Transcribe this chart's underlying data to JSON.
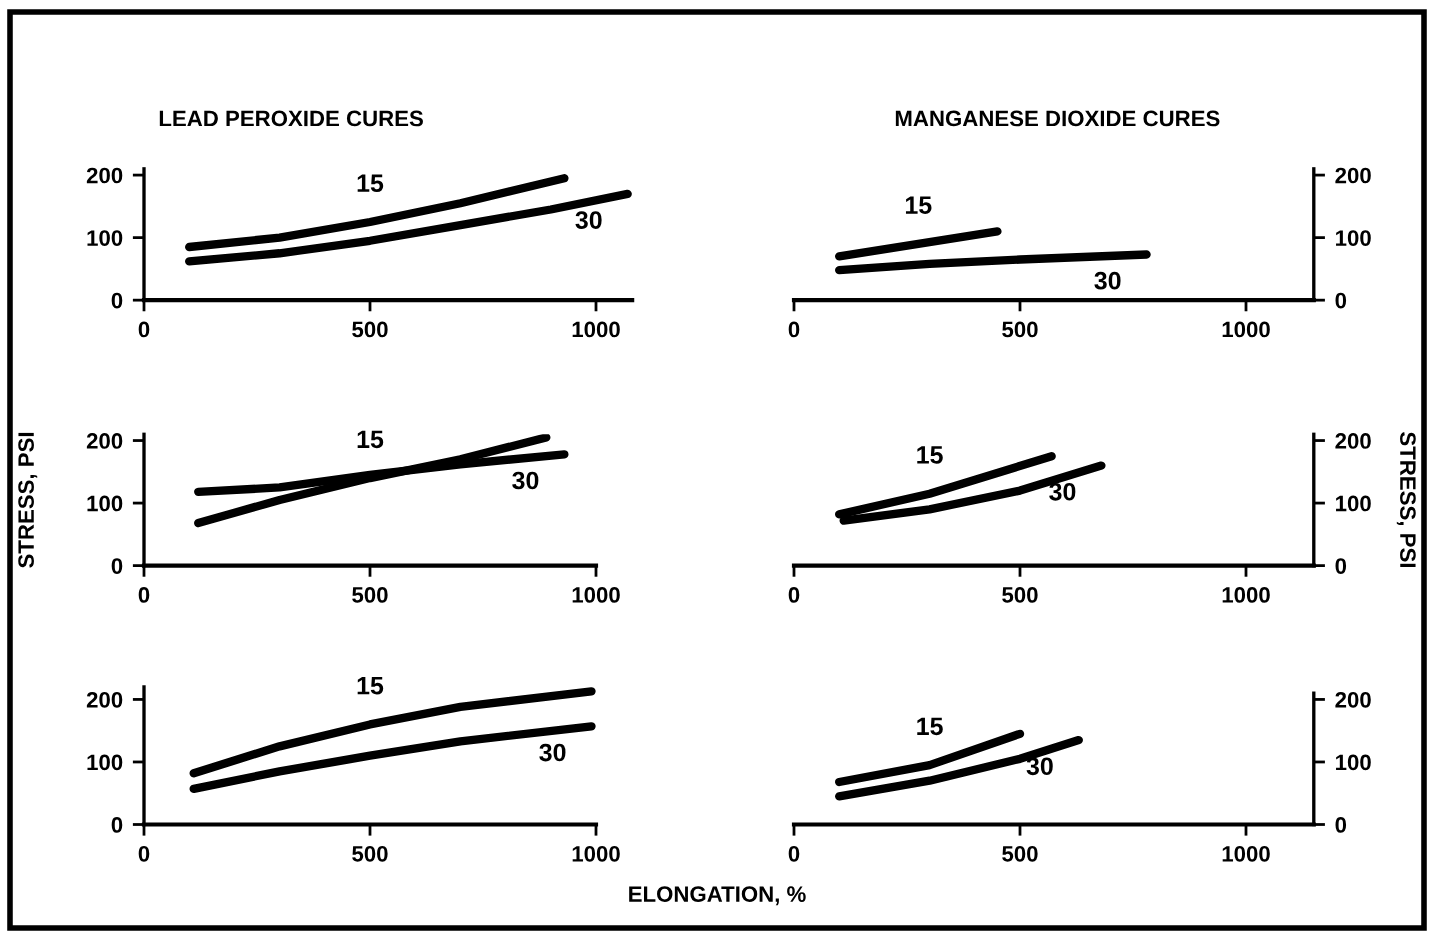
{
  "chart_data": [
    {
      "type": "line",
      "title": "LEAD PEROXIDE CURES",
      "xlim": [
        0,
        1080
      ],
      "xticks": [
        0,
        500,
        1000
      ],
      "ylim": [
        0,
        210
      ],
      "yticks": [
        0,
        100,
        200
      ],
      "legend": false,
      "grid": false,
      "series": [
        {
          "name": "15",
          "color": "#000000",
          "x": [
            100,
            300,
            500,
            700,
            930
          ],
          "values": [
            85,
            100,
            125,
            155,
            195
          ]
        },
        {
          "name": "30",
          "color": "#000000",
          "x": [
            100,
            300,
            500,
            700,
            900,
            1070
          ],
          "values": [
            62,
            75,
            95,
            120,
            145,
            170
          ]
        }
      ]
    },
    {
      "type": "line",
      "title": "MANGANESE DIOXIDE CURES",
      "xlim": [
        0,
        1150
      ],
      "xticks": [
        0,
        500,
        1000
      ],
      "ylim": [
        0,
        210
      ],
      "yticks": [
        0,
        100,
        200
      ],
      "legend": false,
      "grid": false,
      "series": [
        {
          "name": "15",
          "color": "#000000",
          "x": [
            100,
            450
          ],
          "values": [
            70,
            110
          ]
        },
        {
          "name": "30",
          "color": "#000000",
          "x": [
            100,
            300,
            500,
            780
          ],
          "values": [
            48,
            58,
            65,
            73
          ]
        }
      ]
    },
    {
      "type": "line",
      "ylabel": "STRESS, PSI",
      "xlim": [
        0,
        1000
      ],
      "xticks": [
        0,
        500,
        1000
      ],
      "ylim": [
        0,
        210
      ],
      "yticks": [
        0,
        100,
        200
      ],
      "legend": false,
      "grid": false,
      "series": [
        {
          "name": "15",
          "color": "#000000",
          "x": [
            120,
            300,
            500,
            700,
            890
          ],
          "values": [
            68,
            105,
            140,
            170,
            205
          ]
        },
        {
          "name": "30",
          "color": "#000000",
          "x": [
            120,
            300,
            500,
            700,
            930
          ],
          "values": [
            118,
            125,
            145,
            162,
            178
          ]
        }
      ]
    },
    {
      "type": "line",
      "ylabel": "STRESS, PSI",
      "xlim": [
        0,
        1150
      ],
      "xticks": [
        0,
        500,
        1000
      ],
      "ylim": [
        0,
        210
      ],
      "yticks": [
        0,
        100,
        200
      ],
      "legend": false,
      "grid": false,
      "series": [
        {
          "name": "15",
          "color": "#000000",
          "x": [
            100,
            300,
            570
          ],
          "values": [
            82,
            115,
            175
          ]
        },
        {
          "name": "30",
          "color": "#000000",
          "x": [
            110,
            300,
            500,
            680
          ],
          "values": [
            72,
            90,
            120,
            160
          ]
        }
      ]
    },
    {
      "type": "line",
      "xlabel": "ELONGATION, %",
      "xlim": [
        0,
        1000
      ],
      "xticks": [
        0,
        500,
        1000
      ],
      "ylim": [
        0,
        220
      ],
      "yticks": [
        0,
        100,
        200
      ],
      "legend": false,
      "grid": false,
      "series": [
        {
          "name": "15",
          "color": "#000000",
          "x": [
            110,
            300,
            500,
            700,
            990
          ],
          "values": [
            82,
            125,
            160,
            188,
            213
          ]
        },
        {
          "name": "30",
          "color": "#000000",
          "x": [
            110,
            300,
            500,
            700,
            990
          ],
          "values": [
            57,
            85,
            110,
            133,
            157
          ]
        }
      ]
    },
    {
      "type": "line",
      "xlim": [
        0,
        1150
      ],
      "xticks": [
        0,
        500,
        1000
      ],
      "ylim": [
        0,
        210
      ],
      "yticks": [
        0,
        100,
        200
      ],
      "legend": false,
      "grid": false,
      "series": [
        {
          "name": "15",
          "color": "#000000",
          "x": [
            100,
            300,
            500
          ],
          "values": [
            68,
            95,
            145
          ]
        },
        {
          "name": "30",
          "color": "#000000",
          "x": [
            100,
            300,
            500,
            630
          ],
          "values": [
            45,
            70,
            105,
            135
          ]
        }
      ]
    }
  ]
}
